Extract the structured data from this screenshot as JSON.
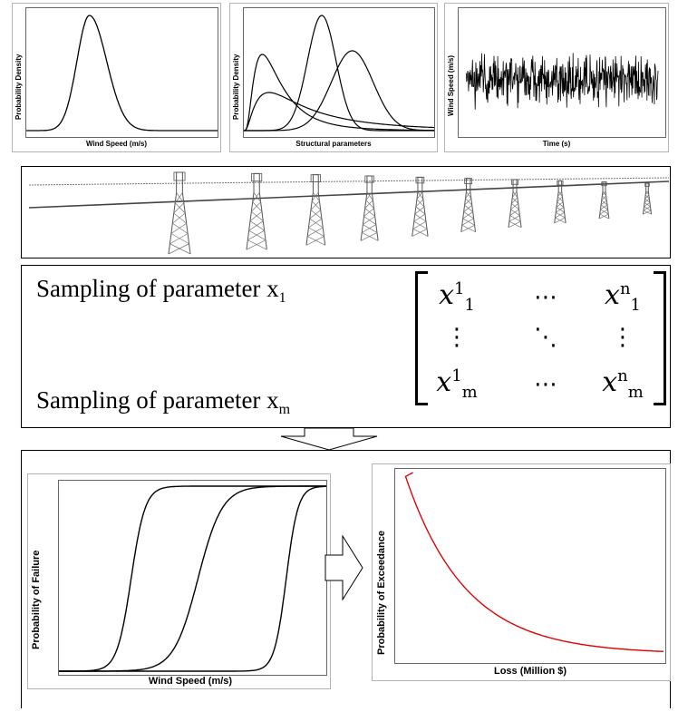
{
  "panels": {
    "wind_pdf": {
      "xlabel": "Wind Speed (m/s)",
      "ylabel": "Probability Density"
    },
    "structural_pdf": {
      "xlabel": "Structural parameters",
      "ylabel": "Probability Density"
    },
    "wind_time": {
      "xlabel": "Time (s)",
      "ylabel": "Wind Speed (m/s)"
    },
    "tower_line": {
      "tower_count": 10
    },
    "sampling": {
      "line1_text": "Sampling of parameter x",
      "line1_sub": "1",
      "line2_text": "Sampling of parameter x",
      "line2_sub": "m",
      "matrix": {
        "top_left": "x",
        "top_left_sup": "1",
        "top_left_sub": "1",
        "top_right": "x",
        "top_right_sup": "n",
        "top_right_sub": "1",
        "bottom_left": "x",
        "bottom_left_sup": "1",
        "bottom_left_sub": "m",
        "bottom_right": "x",
        "bottom_right_sup": "n",
        "bottom_right_sub": "m",
        "h_dots": "⋯",
        "v_dots": "⋮",
        "d_dots": "⋱"
      }
    },
    "fragility": {
      "xlabel": "Wind Speed (m/s)",
      "ylabel": "Probability of Failure"
    },
    "loss": {
      "xlabel": "Loss (Million $)",
      "ylabel": "Probability of Exceedance",
      "curve_color": "#e00000"
    }
  }
}
